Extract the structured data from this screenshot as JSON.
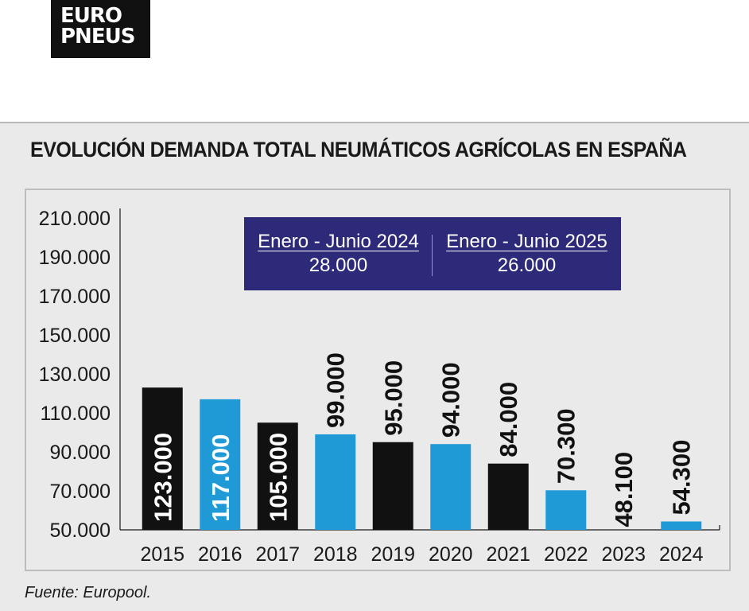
{
  "logo": {
    "line1": "EURO",
    "line2": "PNEUS"
  },
  "title": "EVOLUCIÓN DEMANDA TOTAL NEUMÁTICOS AGRÍCOLAS EN ESPAÑA",
  "info_box": {
    "left": {
      "period": "Enero - Junio 2024",
      "value": "28.000"
    },
    "right": {
      "period": "Enero - Junio 2025",
      "value": "26.000"
    }
  },
  "source": "Fuente: Europool.",
  "colors": {
    "black_bar": "#111111",
    "blue_bar": "#1f9ad6",
    "info_box": "#2e2a7a",
    "panel": "#ebeaeb"
  },
  "chart_data": {
    "type": "bar",
    "title": "EVOLUCIÓN DEMANDA TOTAL NEUMÁTICOS AGRÍCOLAS EN ESPAÑA",
    "xlabel": "",
    "ylabel": "",
    "categories": [
      "2015",
      "2016",
      "2017",
      "2018",
      "2019",
      "2020",
      "2021",
      "2022",
      "2023",
      "2024"
    ],
    "values": [
      123000,
      117000,
      105000,
      99000,
      95000,
      94000,
      84000,
      70300,
      48100,
      54300
    ],
    "value_labels": [
      "123.000",
      "117.000",
      "105.000",
      "99.000",
      "95.000",
      "94.000",
      "84.000",
      "70.300",
      "48.100",
      "54.300"
    ],
    "bar_colors": [
      "black",
      "blue",
      "black",
      "blue",
      "black",
      "blue",
      "black",
      "blue",
      "black",
      "blue"
    ],
    "ylim": [
      50000,
      210000
    ],
    "yticks": [
      50000,
      70000,
      90000,
      110000,
      130000,
      150000,
      170000,
      190000,
      210000
    ],
    "ytick_labels": [
      "50.000",
      "70.000",
      "90.000",
      "110.000",
      "130.000",
      "150.000",
      "170.000",
      "190.000",
      "210.000"
    ],
    "grid": false,
    "legend": "none"
  }
}
